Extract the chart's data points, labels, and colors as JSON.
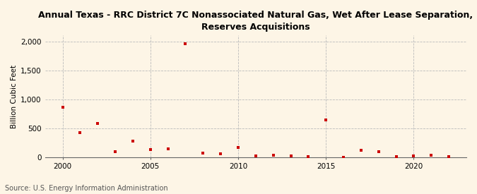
{
  "title": "Annual Texas - RRC District 7C Nonassociated Natural Gas, Wet After Lease Separation,\nReserves Acquisitions",
  "ylabel": "Billion Cubic Feet",
  "source": "Source: U.S. Energy Information Administration",
  "background_color": "#FDF5E6",
  "years": [
    2000,
    2001,
    2002,
    2003,
    2004,
    2005,
    2006,
    2007,
    2008,
    2009,
    2010,
    2011,
    2012,
    2013,
    2014,
    2015,
    2016,
    2017,
    2018,
    2019,
    2020,
    2021,
    2022
  ],
  "values": [
    860,
    430,
    580,
    100,
    280,
    140,
    150,
    1960,
    80,
    65,
    175,
    25,
    40,
    30,
    10,
    650,
    5,
    125,
    100,
    15,
    20,
    40,
    15
  ],
  "marker_color": "#CC0000",
  "ylim": [
    0,
    2100
  ],
  "yticks": [
    0,
    500,
    1000,
    1500,
    2000
  ],
  "ytick_labels": [
    "0",
    "500",
    "1,000",
    "1,500",
    "2,000"
  ],
  "xlim": [
    1999,
    2023
  ],
  "xticks": [
    2000,
    2005,
    2010,
    2015,
    2020
  ],
  "grid_color": "#BBBBBB",
  "title_fontsize": 9,
  "ylabel_fontsize": 7.5,
  "tick_fontsize": 7.5,
  "source_fontsize": 7
}
